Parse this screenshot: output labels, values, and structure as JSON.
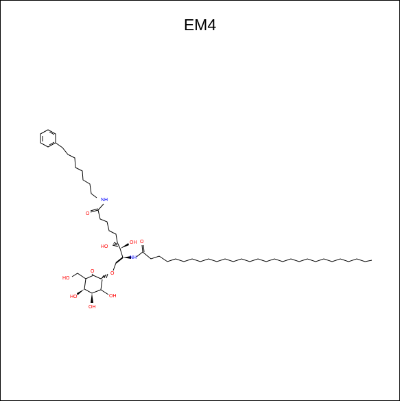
{
  "title": "EM4",
  "colors": {
    "bond": "#000000",
    "oxygen": "#ff0000",
    "nitrogen": "#0000ff"
  },
  "atoms": {
    "nh_linker": "NH",
    "o_linker": "O",
    "oh_c3": "HO",
    "oh_c4": "OH",
    "nh_amide": "NH",
    "o_amide": "O",
    "o_glyco": "O",
    "o_ring": "O",
    "oh_c6": "HO",
    "oh_c4s": "HO",
    "oh_c2s": "OH",
    "oh_c3s": "OH"
  }
}
